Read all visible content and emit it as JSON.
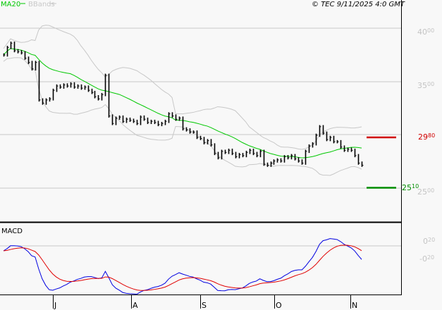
{
  "chart_data": [
    {
      "type": "ohlc-bar",
      "title": "",
      "copyright": "© TEC 9/11/2025 4:0 GMT",
      "legend": [
        {
          "name": "MA20",
          "color": "#00c800"
        },
        {
          "name": "BBands",
          "color": "#c8c8c8"
        }
      ],
      "legend_placement": "top-left",
      "y_ticks": [
        "40.00",
        "35.00",
        "25.00"
      ],
      "ylim": [
        23.5,
        42.6
      ],
      "grid": true,
      "x_ticks": [
        "J",
        "A",
        "S",
        "O",
        "N"
      ],
      "levels": [
        {
          "label": "29.80",
          "value": 29.8,
          "color": "#d00000"
        },
        {
          "label": "25.10",
          "value": 25.1,
          "color": "#008c00"
        }
      ],
      "close": [
        37.5,
        38.2,
        38.6,
        37.9,
        37.8,
        37.7,
        37.2,
        36.8,
        36.2,
        36.8,
        33.3,
        33.0,
        33.3,
        33.4,
        34.2,
        34.6,
        34.5,
        34.7,
        34.6,
        34.8,
        34.5,
        34.6,
        34.4,
        34.5,
        34.2,
        34.0,
        33.6,
        33.4,
        33.8,
        35.6,
        31.8,
        31.1,
        31.6,
        31.7,
        31.3,
        31.5,
        31.4,
        31.3,
        31.1,
        31.7,
        31.5,
        31.2,
        31.3,
        31.2,
        31.0,
        31.1,
        31.3,
        32.0,
        31.8,
        31.5,
        31.6,
        30.6,
        30.5,
        30.3,
        30.3,
        29.8,
        29.7,
        29.3,
        29.5,
        29.1,
        28.3,
        27.9,
        28.5,
        28.4,
        28.6,
        28.3,
        28.0,
        28.2,
        28.1,
        28.4,
        28.6,
        28.3,
        28.1,
        28.5,
        27.3,
        27.2,
        27.4,
        27.6,
        27.7,
        27.6,
        28.0,
        27.9,
        28.1,
        27.8,
        27.6,
        27.4,
        28.5,
        29.0,
        29.2,
        30.0,
        30.8,
        30.2,
        29.6,
        29.8,
        29.4,
        29.4,
        28.9,
        28.6,
        28.7,
        28.6,
        28.1,
        27.4,
        27.2
      ],
      "overlays": [
        "MA20",
        "Bollinger Bands"
      ]
    },
    {
      "type": "line",
      "title": "MACD",
      "y_ticks": [
        "0.20",
        "-0.20"
      ],
      "series_colors": {
        "macd": "#0000e0",
        "signal": "#e00000"
      }
    }
  ]
}
